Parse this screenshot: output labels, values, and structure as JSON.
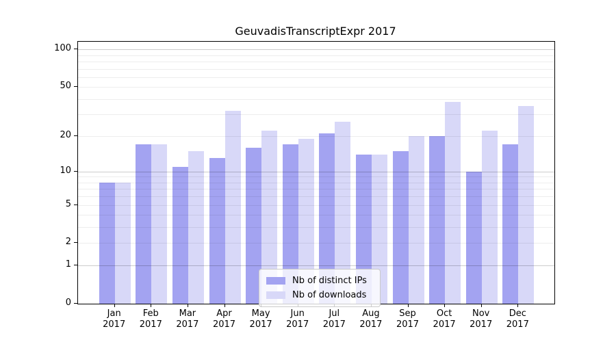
{
  "title": "GeuvadisTranscriptExpr 2017",
  "chart_data": {
    "type": "bar",
    "title": "GeuvadisTranscriptExpr 2017",
    "categories": [
      "Jan",
      "Feb",
      "Mar",
      "Apr",
      "May",
      "Jun",
      "Jul",
      "Aug",
      "Sep",
      "Oct",
      "Nov",
      "Dec"
    ],
    "year": "2017",
    "series": [
      {
        "name": "Nb of distinct IPs",
        "color": "#a3a3f1",
        "values": [
          8,
          17,
          11,
          13,
          16,
          17,
          21,
          14,
          15,
          20,
          10,
          17
        ]
      },
      {
        "name": "Nb of downloads",
        "color": "#d8d8f8",
        "values": [
          8,
          17,
          15,
          32,
          22,
          19,
          26,
          14,
          20,
          38,
          22,
          35
        ]
      }
    ],
    "yscale": "log2(1+x)",
    "ylim": [
      0,
      115
    ],
    "yticks": [
      0,
      1,
      2,
      5,
      10,
      20,
      50,
      100
    ],
    "grid_major": [
      1,
      10,
      100
    ],
    "grid_minor": [
      2,
      3,
      4,
      5,
      6,
      7,
      8,
      9,
      20,
      30,
      40,
      50,
      60,
      70,
      80,
      90
    ],
    "legend_position": "bottom-center",
    "grid": true,
    "background": "#ffffff",
    "axis_color": "#000000"
  }
}
